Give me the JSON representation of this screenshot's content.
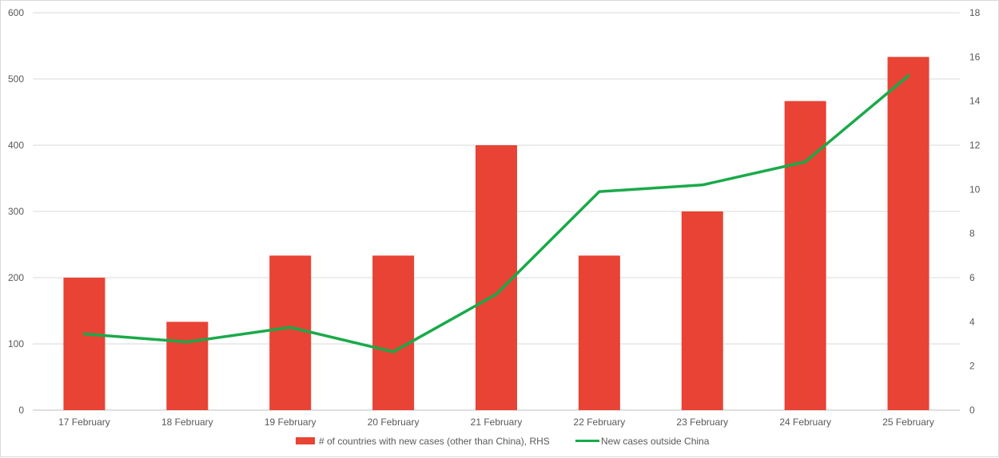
{
  "chart_data": {
    "type": "bar",
    "categories": [
      "17 February",
      "18 February",
      "19 February",
      "20 February",
      "21 February",
      "22 February",
      "23 February",
      "24 February",
      "25 February"
    ],
    "series": [
      {
        "name": "# of countries with new cases (other than China), RHS",
        "kind": "bar",
        "axis": "right",
        "color": "#e84334",
        "values": [
          6,
          4,
          7,
          7,
          12,
          7,
          9,
          14,
          16
        ]
      },
      {
        "name": "New cases outside China",
        "kind": "line",
        "axis": "left",
        "color": "#1aaa4a",
        "values": [
          115,
          103,
          125,
          88,
          175,
          330,
          340,
          375,
          505
        ]
      }
    ],
    "y_left": {
      "ylim": [
        0,
        600
      ],
      "ticks": [
        "0",
        "100",
        "200",
        "300",
        "400",
        "500",
        "600"
      ]
    },
    "y_right": {
      "ylim": [
        0,
        18
      ],
      "ticks": [
        "0",
        "2",
        "4",
        "6",
        "8",
        "10",
        "12",
        "14",
        "16",
        "18"
      ]
    },
    "grid": true,
    "legend_position": "bottom"
  }
}
